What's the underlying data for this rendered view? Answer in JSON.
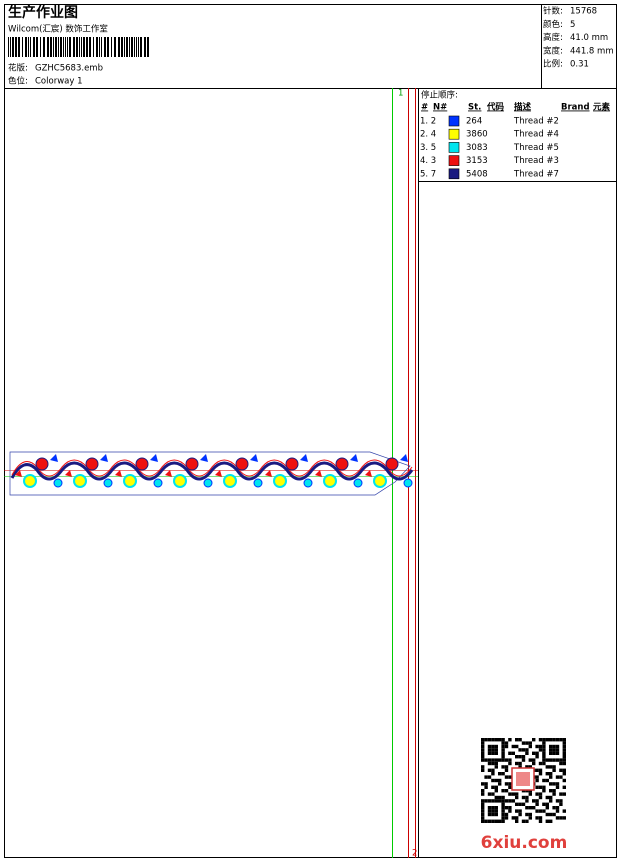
{
  "header": {
    "title": "生产作业图",
    "studio": "Wilcom(汇宸) 数饰工作室",
    "design_file_label": "花版:",
    "design_file": "GZHC5683.emb",
    "colorway_label": "色位:",
    "colorway": "Colorway 1"
  },
  "stats": [
    {
      "label": "针数:",
      "value": "15768"
    },
    {
      "label": "颜色:",
      "value": "5"
    },
    {
      "label": "高度:",
      "value": "41.0 mm"
    },
    {
      "label": "宽度:",
      "value": "441.8 mm"
    },
    {
      "label": "比例:",
      "value": "0.31"
    }
  ],
  "stop_sequence": {
    "title": "停止顺序:",
    "columns": [
      "#",
      "N#",
      "St.",
      "代码",
      "描述",
      "Brand",
      "元素"
    ],
    "rows": [
      {
        "index": "1. 2",
        "color": "#0033ff",
        "code": "264",
        "description": "Thread #2"
      },
      {
        "index": "2. 4",
        "color": "#ffff00",
        "code": "3860",
        "description": "Thread #4"
      },
      {
        "index": "3. 5",
        "color": "#00e5ee",
        "code": "3083",
        "description": "Thread #5"
      },
      {
        "index": "4. 3",
        "color": "#ee1111",
        "code": "3153",
        "description": "Thread #3"
      },
      {
        "index": "5. 7",
        "color": "#1a1a80",
        "code": "5408",
        "description": "Thread #7"
      }
    ]
  },
  "guide_labels": [
    "1",
    "2"
  ],
  "watermark": "6xiu.com"
}
